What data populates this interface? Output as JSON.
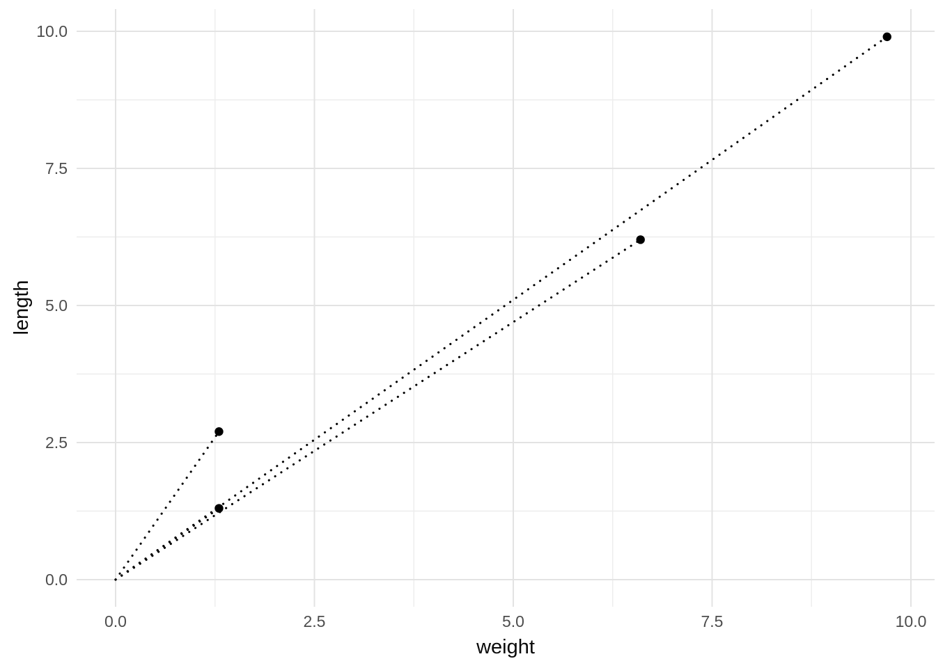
{
  "chart_data": {
    "type": "scatter",
    "title": "",
    "xlabel": "weight",
    "ylabel": "length",
    "points": [
      {
        "weight": 1.3,
        "length": 2.7
      },
      {
        "weight": 1.3,
        "length": 1.3
      },
      {
        "weight": 6.6,
        "length": 6.2
      },
      {
        "weight": 9.7,
        "length": 9.9
      }
    ],
    "segments": [
      {
        "x1": 0,
        "y1": 0,
        "x2": 1.3,
        "y2": 2.7
      },
      {
        "x1": 0,
        "y1": 0,
        "x2": 1.3,
        "y2": 1.3
      },
      {
        "x1": 0,
        "y1": 0,
        "x2": 6.6,
        "y2": 6.2
      },
      {
        "x1": 0,
        "y1": 0,
        "x2": 9.7,
        "y2": 9.9
      }
    ],
    "segment_style": "dotted",
    "x_ticks": {
      "values": [
        0,
        2.5,
        5,
        7.5,
        10
      ],
      "labels": [
        "0.0",
        "2.5",
        "5.0",
        "7.5",
        "10.0"
      ]
    },
    "y_ticks": {
      "values": [
        0,
        2.5,
        5,
        7.5,
        10
      ],
      "labels": [
        "0.0",
        "2.5",
        "5.0",
        "7.5",
        "10.0"
      ]
    },
    "minor_breaks": [
      1.25,
      3.75,
      6.25,
      8.75
    ],
    "xlim": [
      0,
      10
    ],
    "ylim": [
      0,
      10
    ],
    "grid": {
      "major": true,
      "minor": true
    },
    "legend": "none",
    "colors": {
      "point": "#000000",
      "segment": "#000000",
      "grid_major": "#e3e3e3",
      "grid_minor": "#ededed",
      "tick_label": "#4d4d4d",
      "axis_title": "#0a0a0a",
      "background": "#ffffff"
    }
  }
}
